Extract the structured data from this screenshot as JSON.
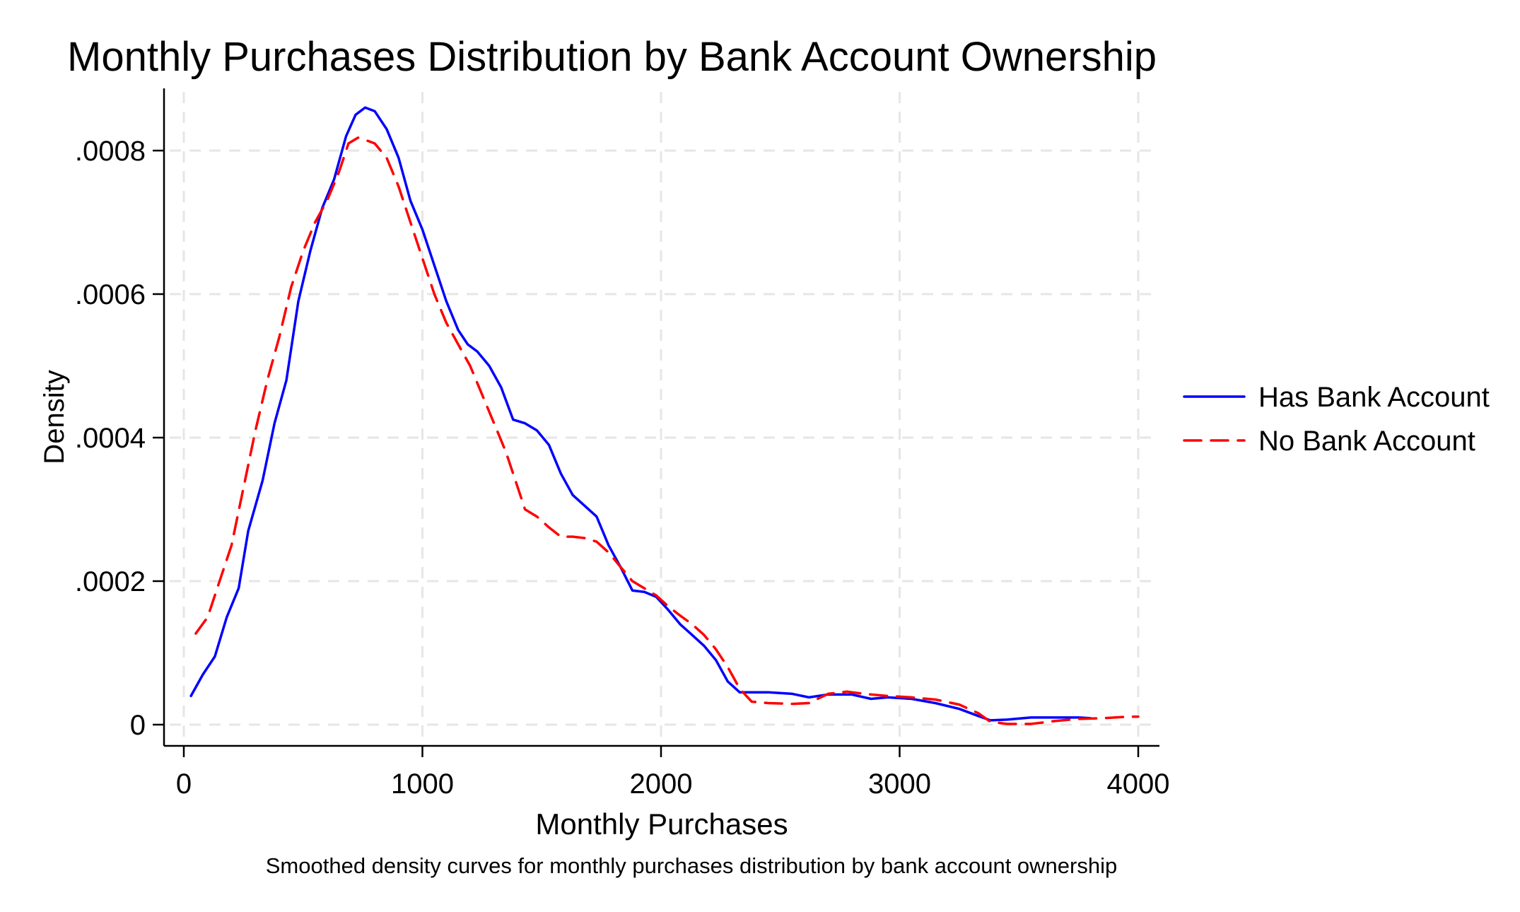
{
  "chart_data": {
    "type": "line",
    "title": "Monthly Purchases Distribution by Bank Account Ownership",
    "xlabel": "Monthly Purchases",
    "ylabel": "Density",
    "caption": "Smoothed density curves for monthly purchases distribution by bank account ownership",
    "xlim": [
      0,
      4000
    ],
    "ylim": [
      0,
      0.00088
    ],
    "x_ticks": [
      0,
      1000,
      2000,
      3000,
      4000
    ],
    "x_tick_labels": [
      "0",
      "1000",
      "2000",
      "3000",
      "4000"
    ],
    "y_ticks": [
      0,
      0.0002,
      0.0004,
      0.0006,
      0.0008
    ],
    "y_tick_labels": [
      "0",
      ".0002",
      ".0004",
      ".0006",
      ".0008"
    ],
    "grid": true,
    "legend_position": "right",
    "series": [
      {
        "name": "Has Bank Account",
        "color": "#0000ff",
        "style": "solid",
        "points": [
          [
            30,
            4e-05
          ],
          [
            80,
            7e-05
          ],
          [
            130,
            9.5e-05
          ],
          [
            180,
            0.00015
          ],
          [
            230,
            0.00019
          ],
          [
            270,
            0.00027
          ],
          [
            330,
            0.00034
          ],
          [
            380,
            0.00042
          ],
          [
            430,
            0.00048
          ],
          [
            480,
            0.00059
          ],
          [
            530,
            0.00066
          ],
          [
            580,
            0.00072
          ],
          [
            630,
            0.00076
          ],
          [
            680,
            0.00082
          ],
          [
            720,
            0.00085
          ],
          [
            760,
            0.00086
          ],
          [
            800,
            0.000855
          ],
          [
            850,
            0.00083
          ],
          [
            900,
            0.00079
          ],
          [
            950,
            0.00073
          ],
          [
            1000,
            0.00069
          ],
          [
            1050,
            0.00064
          ],
          [
            1100,
            0.00059
          ],
          [
            1150,
            0.00055
          ],
          [
            1190,
            0.00053
          ],
          [
            1230,
            0.00052
          ],
          [
            1280,
            0.0005
          ],
          [
            1330,
            0.00047
          ],
          [
            1380,
            0.000425
          ],
          [
            1430,
            0.00042
          ],
          [
            1480,
            0.00041
          ],
          [
            1530,
            0.00039
          ],
          [
            1580,
            0.00035
          ],
          [
            1630,
            0.00032
          ],
          [
            1680,
            0.000305
          ],
          [
            1730,
            0.00029
          ],
          [
            1780,
            0.00025
          ],
          [
            1830,
            0.00022
          ],
          [
            1880,
            0.000187
          ],
          [
            1930,
            0.000185
          ],
          [
            1980,
            0.000178
          ],
          [
            2030,
            0.00016
          ],
          [
            2080,
            0.00014
          ],
          [
            2130,
            0.000125
          ],
          [
            2180,
            0.00011
          ],
          [
            2230,
            9e-05
          ],
          [
            2280,
            6e-05
          ],
          [
            2330,
            4.5e-05
          ],
          [
            2380,
            4.5e-05
          ],
          [
            2450,
            4.5e-05
          ],
          [
            2550,
            4.3e-05
          ],
          [
            2620,
            3.8e-05
          ],
          [
            2700,
            4.2e-05
          ],
          [
            2800,
            4.2e-05
          ],
          [
            2880,
            3.6e-05
          ],
          [
            2950,
            3.8e-05
          ],
          [
            3050,
            3.6e-05
          ],
          [
            3150,
            3e-05
          ],
          [
            3250,
            2.2e-05
          ],
          [
            3330,
            1.2e-05
          ],
          [
            3380,
            6e-06
          ],
          [
            3450,
            7e-06
          ],
          [
            3550,
            1e-05
          ],
          [
            3650,
            1e-05
          ],
          [
            3750,
            1e-05
          ],
          [
            3800,
            9e-06
          ]
        ]
      },
      {
        "name": "No Bank Account",
        "color": "#ff0000",
        "style": "dashed",
        "points": [
          [
            50,
            0.000127
          ],
          [
            100,
            0.00015
          ],
          [
            150,
            0.0002
          ],
          [
            200,
            0.00025
          ],
          [
            250,
            0.00033
          ],
          [
            300,
            0.00041
          ],
          [
            350,
            0.00048
          ],
          [
            400,
            0.00054
          ],
          [
            450,
            0.00061
          ],
          [
            500,
            0.00066
          ],
          [
            550,
            0.0007
          ],
          [
            600,
            0.00073
          ],
          [
            650,
            0.00077
          ],
          [
            690,
            0.00081
          ],
          [
            730,
            0.000818
          ],
          [
            760,
            0.000815
          ],
          [
            800,
            0.00081
          ],
          [
            850,
            0.00079
          ],
          [
            900,
            0.00075
          ],
          [
            950,
            0.0007
          ],
          [
            1000,
            0.00065
          ],
          [
            1050,
            0.0006
          ],
          [
            1100,
            0.00056
          ],
          [
            1150,
            0.00053
          ],
          [
            1200,
            0.0005
          ],
          [
            1250,
            0.00046
          ],
          [
            1300,
            0.00042
          ],
          [
            1350,
            0.00038
          ],
          [
            1400,
            0.00033
          ],
          [
            1430,
            0.0003
          ],
          [
            1480,
            0.00029
          ],
          [
            1530,
            0.000275
          ],
          [
            1580,
            0.000262
          ],
          [
            1630,
            0.000262
          ],
          [
            1680,
            0.00026
          ],
          [
            1730,
            0.000255
          ],
          [
            1780,
            0.00024
          ],
          [
            1830,
            0.00022
          ],
          [
            1880,
            0.0002
          ],
          [
            1930,
            0.00019
          ],
          [
            1980,
            0.00018
          ],
          [
            2030,
            0.000165
          ],
          [
            2080,
            0.000152
          ],
          [
            2130,
            0.00014
          ],
          [
            2180,
            0.000125
          ],
          [
            2230,
            0.000105
          ],
          [
            2280,
            8e-05
          ],
          [
            2330,
            5e-05
          ],
          [
            2380,
            3.2e-05
          ],
          [
            2450,
            3e-05
          ],
          [
            2550,
            2.9e-05
          ],
          [
            2620,
            3e-05
          ],
          [
            2700,
            4.3e-05
          ],
          [
            2780,
            4.6e-05
          ],
          [
            2850,
            4.3e-05
          ],
          [
            2950,
            4e-05
          ],
          [
            3050,
            3.8e-05
          ],
          [
            3150,
            3.5e-05
          ],
          [
            3250,
            2.8e-05
          ],
          [
            3330,
            1.6e-05
          ],
          [
            3380,
            4e-06
          ],
          [
            3450,
            1e-06
          ],
          [
            3550,
            1e-06
          ],
          [
            3650,
            5e-06
          ],
          [
            3750,
            8e-06
          ],
          [
            3850,
            9e-06
          ],
          [
            3950,
            1.1e-05
          ],
          [
            4000,
            1.1e-05
          ]
        ]
      }
    ]
  }
}
